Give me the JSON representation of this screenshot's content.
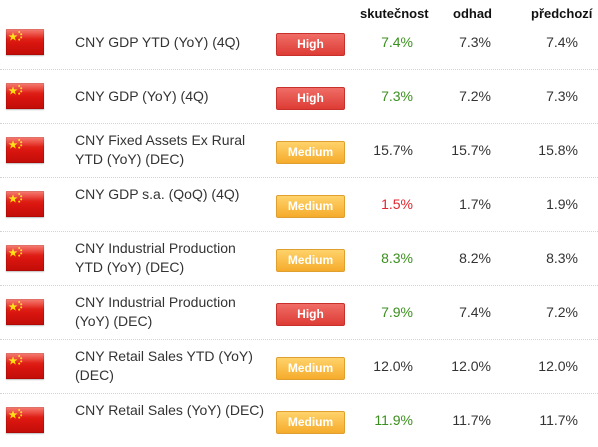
{
  "header": {
    "actual": "skutečnost",
    "forecast": "odhad",
    "previous": "předchozí"
  },
  "colors": {
    "high": "#e0463f",
    "medium": "#f7b53a",
    "actual_up": "#3b8f1f",
    "actual_down": "#e0262c",
    "flag_red": "#de2910",
    "flag_star": "#ffde00"
  },
  "rows": [
    {
      "flag": "china-flag-icon",
      "event": "CNY GDP YTD (YoY) (4Q)",
      "impact": "High",
      "impact_level": "high",
      "actual": "7.4%",
      "actual_trend": "up",
      "forecast": "7.3%",
      "previous": "7.4%"
    },
    {
      "flag": "china-flag-icon",
      "event": "CNY GDP (YoY) (4Q)",
      "impact": "High",
      "impact_level": "high",
      "actual": "7.3%",
      "actual_trend": "up",
      "forecast": "7.2%",
      "previous": "7.3%"
    },
    {
      "flag": "china-flag-icon",
      "event": "CNY Fixed Assets Ex Rural YTD (YoY) (DEC)",
      "impact": "Medium",
      "impact_level": "medium",
      "actual": "15.7%",
      "actual_trend": "neutral",
      "forecast": "15.7%",
      "previous": "15.8%"
    },
    {
      "flag": "china-flag-icon",
      "event": "CNY GDP s.a. (QoQ) (4Q)",
      "impact": "Medium",
      "impact_level": "medium",
      "actual": "1.5%",
      "actual_trend": "down",
      "forecast": "1.7%",
      "previous": "1.9%"
    },
    {
      "flag": "china-flag-icon",
      "event": "CNY Industrial Production YTD (YoY) (DEC)",
      "impact": "Medium",
      "impact_level": "medium",
      "actual": "8.3%",
      "actual_trend": "up",
      "forecast": "8.2%",
      "previous": "8.3%"
    },
    {
      "flag": "china-flag-icon",
      "event": "CNY Industrial Production (YoY) (DEC)",
      "impact": "High",
      "impact_level": "high",
      "actual": "7.9%",
      "actual_trend": "up",
      "forecast": "7.4%",
      "previous": "7.2%"
    },
    {
      "flag": "china-flag-icon",
      "event": "CNY Retail Sales YTD (YoY) (DEC)",
      "impact": "Medium",
      "impact_level": "medium",
      "actual": "12.0%",
      "actual_trend": "neutral",
      "forecast": "12.0%",
      "previous": "12.0%"
    },
    {
      "flag": "china-flag-icon",
      "event": "CNY Retail Sales (YoY) (DEC)",
      "impact": "Medium",
      "impact_level": "medium",
      "actual": "11.9%",
      "actual_trend": "up",
      "forecast": "11.7%",
      "previous": "11.7%"
    }
  ]
}
